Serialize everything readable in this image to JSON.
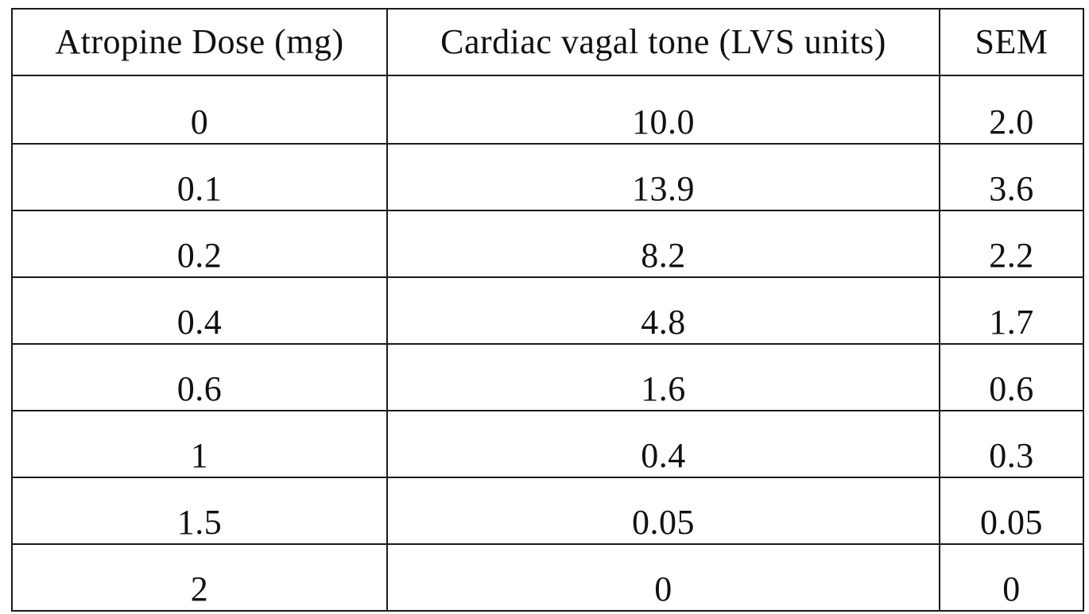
{
  "table": {
    "headers": [
      "Atropine Dose (mg)",
      "Cardiac vagal tone (LVS units)",
      "SEM"
    ],
    "rows": [
      [
        "0",
        "10.0",
        "2.0"
      ],
      [
        "0.1",
        "13.9",
        "3.6"
      ],
      [
        "0.2",
        "8.2",
        "2.2"
      ],
      [
        "0.4",
        "4.8",
        "1.7"
      ],
      [
        "0.6",
        "1.6",
        "0.6"
      ],
      [
        "1",
        "0.4",
        "0.3"
      ],
      [
        "1.5",
        "0.05",
        "0.05"
      ],
      [
        "2",
        "0",
        "0"
      ]
    ]
  }
}
